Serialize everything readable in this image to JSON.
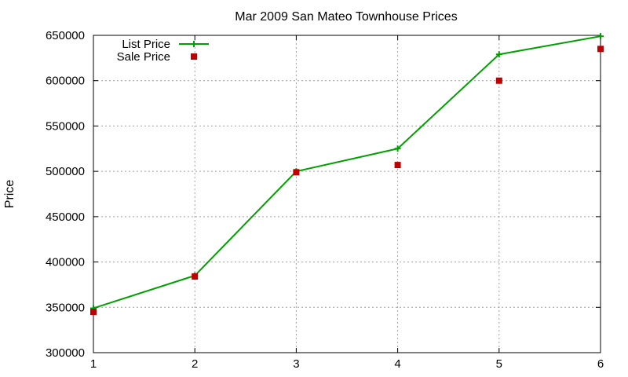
{
  "chart_data": {
    "type": "line",
    "title": "Mar 2009 San Mateo Townhouse Prices",
    "xlabel": "",
    "ylabel": "Price",
    "x": [
      1,
      2,
      3,
      4,
      5,
      6
    ],
    "xlim": [
      1,
      6
    ],
    "ylim": [
      300000,
      650000
    ],
    "x_ticks": [
      "1",
      "2",
      "3",
      "4",
      "5",
      "6"
    ],
    "y_ticks": [
      "300000",
      "350000",
      "400000",
      "450000",
      "500000",
      "550000",
      "600000",
      "650000"
    ],
    "x_tick_values": [
      1,
      2,
      3,
      4,
      5,
      6
    ],
    "y_tick_values": [
      300000,
      350000,
      400000,
      450000,
      500000,
      550000,
      600000,
      650000
    ],
    "grid": true,
    "legend_position": "top-left",
    "series": [
      {
        "name": "List Price",
        "style": "line-with-plus-markers",
        "color": "#00a000",
        "values": [
          349000,
          385000,
          500000,
          525000,
          629000,
          649000
        ]
      },
      {
        "name": "Sale Price",
        "style": "square-markers",
        "color": "#c00000",
        "values": [
          345000,
          384000,
          499000,
          507000,
          600000,
          635000
        ]
      }
    ]
  }
}
